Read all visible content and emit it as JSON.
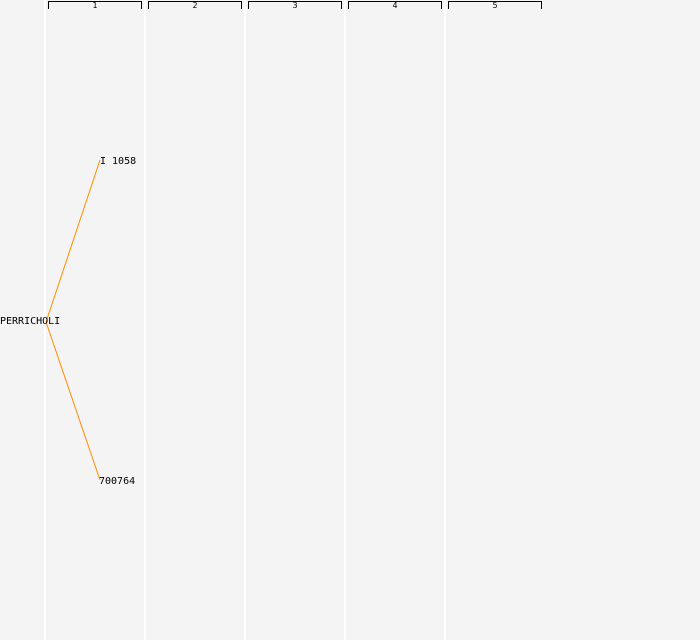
{
  "generations": [
    "1",
    "2",
    "3",
    "4",
    "5"
  ],
  "root": {
    "label": "PERRICHOLI"
  },
  "parents": [
    {
      "label": "I 1058"
    },
    {
      "label": "700764"
    }
  ],
  "colors": {
    "edge": "#ff8c00",
    "background": "#f4f4f4",
    "column_line": "#ffffff"
  }
}
